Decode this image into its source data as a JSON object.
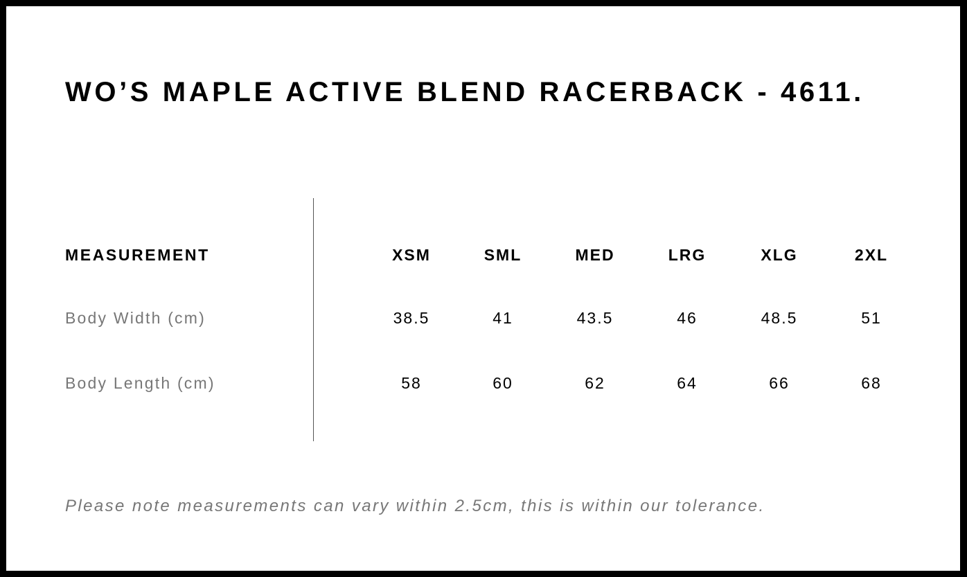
{
  "title": "WO’S MAPLE ACTIVE BLEND RACERBACK - 4611.",
  "table": {
    "header_label": "MEASUREMENT",
    "sizes": [
      "XSM",
      "SML",
      "MED",
      "LRG",
      "XLG",
      "2XL"
    ],
    "rows": [
      {
        "label": "Body Width (cm)",
        "values": [
          "38.5",
          "41",
          "43.5",
          "46",
          "48.5",
          "51"
        ]
      },
      {
        "label": "Body Length (cm)",
        "values": [
          "58",
          "60",
          "62",
          "64",
          "66",
          "68"
        ]
      }
    ]
  },
  "note": "Please note measurements can vary within 2.5cm, this is within our tolerance."
}
